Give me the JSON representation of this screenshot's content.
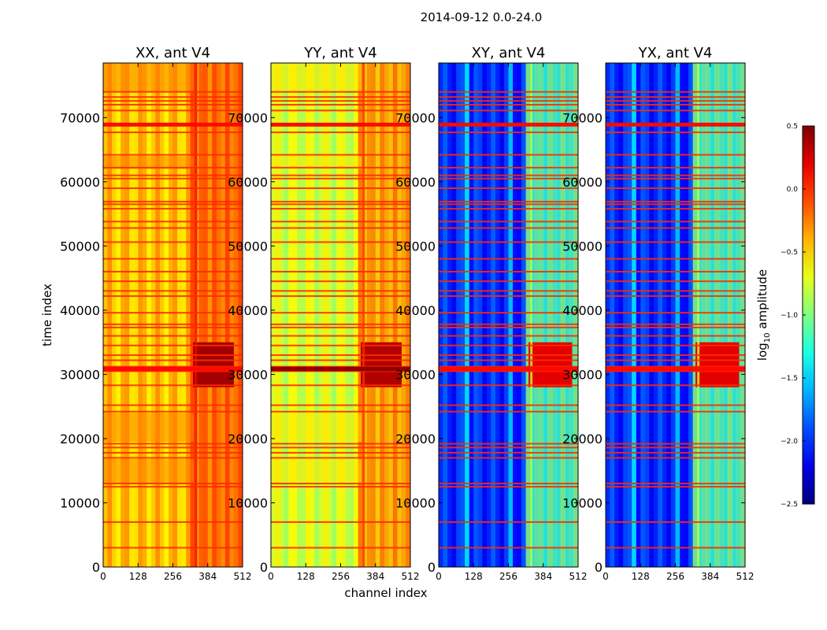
{
  "figure": {
    "suptitle": "2014-09-12 0.0-24.0",
    "xlabel": "channel index",
    "ylabel": "time index"
  },
  "chart_data": [
    {
      "type": "heatmap",
      "title": "XX, ant V4",
      "kind": "autocorr",
      "x_ticks": [
        0,
        128,
        256,
        384,
        512
      ],
      "y_ticks": [
        0,
        10000,
        20000,
        30000,
        40000,
        50000,
        60000,
        70000
      ],
      "xlim": [
        0,
        512
      ],
      "ylim": [
        0,
        78500
      ],
      "base_level": -0.45,
      "right_band_level": -0.15,
      "bright_region": {
        "channel_range": [
          330,
          480
        ],
        "time_range": [
          28000,
          35000
        ],
        "level": 0.4
      }
    },
    {
      "type": "heatmap",
      "title": "YY, ant V4",
      "kind": "autocorr",
      "x_ticks": [
        0,
        128,
        256,
        384,
        512
      ],
      "y_ticks": [
        0,
        10000,
        20000,
        30000,
        40000,
        50000,
        60000,
        70000
      ],
      "xlim": [
        0,
        512
      ],
      "ylim": [
        0,
        78500
      ],
      "base_level": -0.75,
      "right_band_level": -0.3,
      "bright_region": {
        "channel_range": [
          330,
          480
        ],
        "time_range": [
          28000,
          35000
        ],
        "level": 0.35
      }
    },
    {
      "type": "heatmap",
      "title": "XY, ant V4",
      "kind": "crosscorr",
      "x_ticks": [
        0,
        128,
        256,
        384,
        512
      ],
      "y_ticks": [
        0,
        10000,
        20000,
        30000,
        40000,
        50000,
        60000,
        70000
      ],
      "xlim": [
        0,
        512
      ],
      "ylim": [
        0,
        78500
      ],
      "base_level": -2.0,
      "right_band_level": -1.1,
      "bright_region": {
        "channel_range": [
          330,
          490
        ],
        "time_range": [
          28000,
          35000
        ],
        "level": 0.2
      }
    },
    {
      "type": "heatmap",
      "title": "YX, ant V4",
      "kind": "crosscorr",
      "x_ticks": [
        0,
        128,
        256,
        384,
        512
      ],
      "y_ticks": [
        0,
        10000,
        20000,
        30000,
        40000,
        50000,
        60000,
        70000
      ],
      "xlim": [
        0,
        512
      ],
      "ylim": [
        0,
        78500
      ],
      "base_level": -2.0,
      "right_band_level": -1.1,
      "bright_region": {
        "channel_range": [
          330,
          490
        ],
        "time_range": [
          28000,
          35000
        ],
        "level": 0.2
      }
    }
  ],
  "flagged_times": [
    3000,
    7000,
    12500,
    13000,
    17000,
    17800,
    18600,
    19200,
    24200,
    25200,
    28300,
    30500,
    31200,
    32200,
    33000,
    34500,
    36000,
    37300,
    37800,
    39600,
    42200,
    43000,
    44500,
    46000,
    48000,
    50600,
    52800,
    53800,
    55800,
    56500,
    56900,
    59000,
    60500,
    61000,
    62200,
    64200,
    67700,
    68800,
    69000,
    71100,
    72000,
    72600,
    73200,
    74000
  ],
  "colorbar": {
    "label_prefix": "log",
    "label_sub": "10",
    "label_suffix": " amplitude",
    "range": [
      -2.5,
      0.5
    ],
    "ticks": [
      "0.5",
      "0.0",
      "−0.5",
      "−1.0",
      "−1.5",
      "−2.0",
      "−2.5"
    ],
    "tick_values": [
      0.5,
      0.0,
      -0.5,
      -1.0,
      -1.5,
      -2.0,
      -2.5
    ],
    "colormap": "jet"
  }
}
